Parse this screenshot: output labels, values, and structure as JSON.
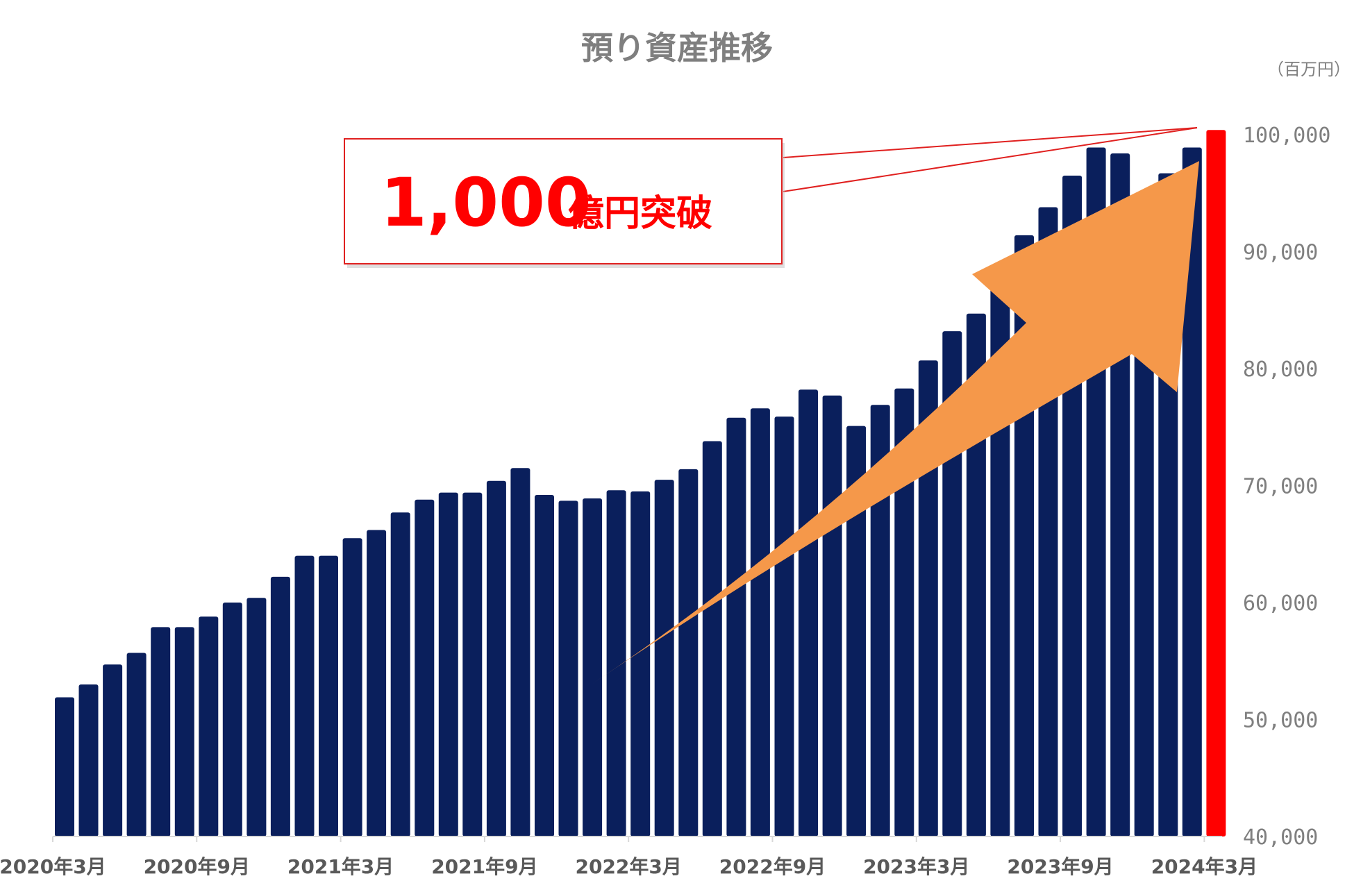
{
  "chart_data": {
    "type": "bar",
    "title": "預り資産推移",
    "unit": "（百万円）",
    "ylim": [
      40000,
      100000
    ],
    "yticks": [
      "100,000",
      "90,000",
      "80,000",
      "70,000",
      "60,000",
      "50,000",
      "40,000"
    ],
    "ytick_values": [
      100000,
      90000,
      80000,
      70000,
      60000,
      50000,
      40000
    ],
    "xtick_labels": [
      "2020年3月",
      "2020年9月",
      "2021年3月",
      "2021年9月",
      "2022年3月",
      "2022年9月",
      "2023年3月",
      "2023年9月",
      "2024年3月"
    ],
    "xtick_indices": [
      0,
      6,
      12,
      18,
      24,
      30,
      36,
      42,
      48
    ],
    "values": [
      51900,
      53000,
      54700,
      55700,
      57900,
      57900,
      58800,
      60000,
      60400,
      62200,
      64000,
      64000,
      65500,
      66200,
      67700,
      68800,
      69400,
      69400,
      70400,
      71500,
      69200,
      68700,
      68900,
      69600,
      69500,
      70500,
      71400,
      73800,
      75800,
      76600,
      75900,
      78200,
      77700,
      75100,
      76900,
      78300,
      80700,
      83200,
      84700,
      87000,
      91400,
      93800,
      96500,
      98900,
      98400,
      94600,
      96700,
      98900,
      100400
    ],
    "bar_color": "#0a1f5c",
    "highlight_color": "#ff0000",
    "grid": false,
    "legend": "none"
  },
  "callout": {
    "number": "1,000",
    "text": "億円突破",
    "text_color": "#ff0000",
    "border_color": "#e0201f"
  },
  "arrow": {
    "color": "#f5984a",
    "direction": "up-right"
  }
}
